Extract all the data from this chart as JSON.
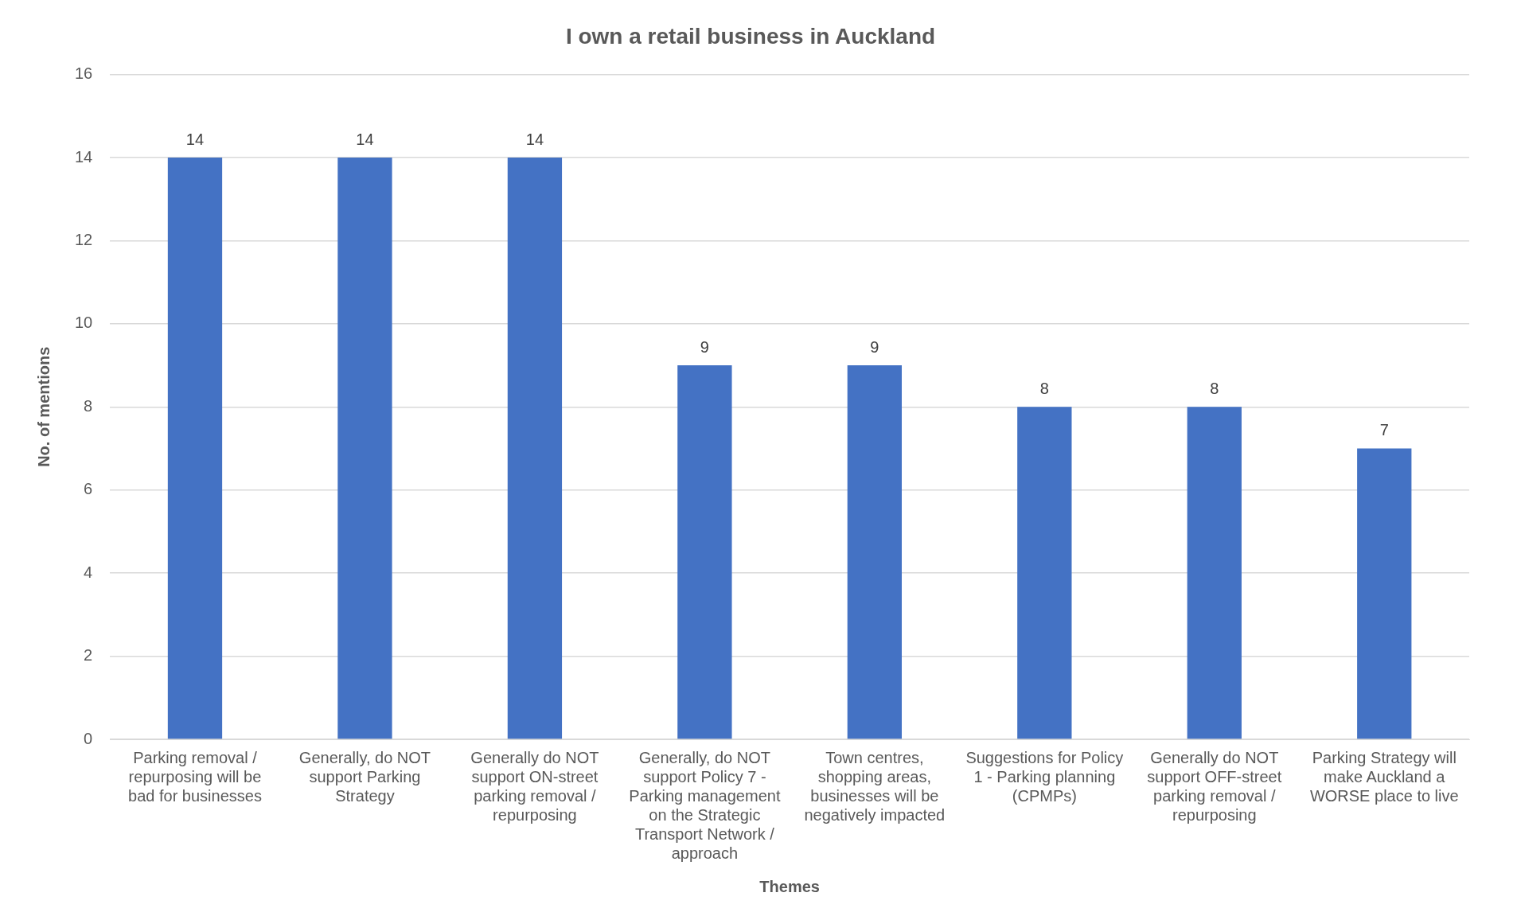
{
  "chart_data": {
    "type": "bar",
    "title": "I own a retail business in Auckland",
    "xlabel": "Themes",
    "ylabel": "No. of mentions",
    "categories": [
      "Parking removal / repurposing will be bad for businesses",
      "Generally, do NOT support Parking Strategy",
      "Generally do NOT support ON-street parking removal / repurposing",
      "Generally, do NOT support Policy 7 - Parking management on the Strategic Transport Network / approach",
      "Town centres, shopping areas, businesses will be negatively impacted",
      "Suggestions for Policy 1 - Parking planning (CPMPs)",
      "Generally do NOT support OFF-street parking removal / repurposing",
      "Parking Strategy will make Auckland a WORSE place to live"
    ],
    "values": [
      14,
      14,
      14,
      9,
      9,
      8,
      8,
      7
    ],
    "color": "#4472c4",
    "ylim": [
      0,
      16
    ],
    "yticks": [
      0,
      2,
      4,
      6,
      8,
      10,
      12,
      14,
      16
    ],
    "grid": "y",
    "data_labels": true
  }
}
